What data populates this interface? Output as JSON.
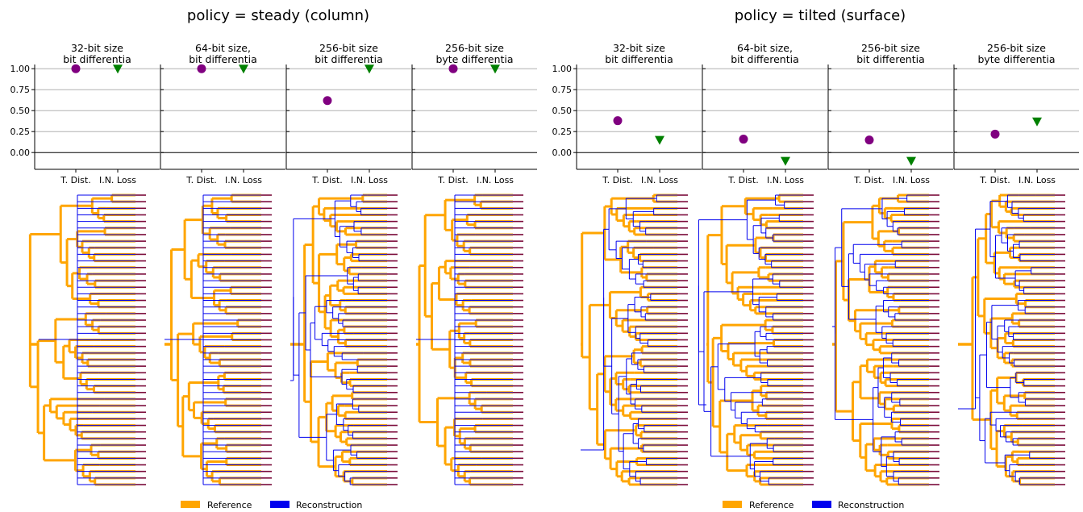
{
  "legend": {
    "reference_label": "Reference",
    "reconstruction_label": "Reconstruction"
  },
  "colors": {
    "reference": "#ffa500",
    "reconstruction": "#0000ee",
    "leaf": "#7a0a3a",
    "triplet_distance_marker": "#800080",
    "inner_node_loss_marker": "#008000",
    "grid": "#b0b0b0"
  },
  "chart_data": [
    {
      "type": "scatter",
      "title": "policy = steady (column)",
      "ylim": [
        -0.2,
        1.05
      ],
      "yticks": [
        "1.00",
        "0.75",
        "0.50",
        "0.25",
        "0.00"
      ],
      "grid": true,
      "panels": [
        {
          "title": [
            "32-bit size",
            "bit differentia"
          ],
          "categories": [
            "T. Dist.",
            "I.N. Loss"
          ],
          "values": [
            1.0,
            1.0
          ],
          "seed": 11
        },
        {
          "title": [
            "64-bit size,",
            "bit differentia"
          ],
          "categories": [
            "T. Dist.",
            "I.N. Loss"
          ],
          "values": [
            1.0,
            1.0
          ],
          "seed": 23
        },
        {
          "title": [
            "256-bit size",
            "bit differentia"
          ],
          "categories": [
            "T. Dist.",
            "I.N. Loss"
          ],
          "values": [
            0.62,
            1.0
          ],
          "seed": 37
        },
        {
          "title": [
            "256-bit size",
            "byte differentia"
          ],
          "categories": [
            "T. Dist.",
            "I.N. Loss"
          ],
          "values": [
            1.0,
            1.0
          ],
          "seed": 41
        }
      ]
    },
    {
      "type": "scatter",
      "title": "policy = tilted (surface)",
      "ylim": [
        -0.2,
        1.05
      ],
      "yticks": [
        "1.00",
        "0.75",
        "0.50",
        "0.25",
        "0.00"
      ],
      "grid": true,
      "panels": [
        {
          "title": [
            "32-bit size",
            "bit differentia"
          ],
          "categories": [
            "T. Dist.",
            "I.N. Loss"
          ],
          "values": [
            0.38,
            0.15
          ],
          "seed": 53
        },
        {
          "title": [
            "64-bit size,",
            "bit differentia"
          ],
          "categories": [
            "T. Dist.",
            "I.N. Loss"
          ],
          "values": [
            0.16,
            -0.1
          ],
          "seed": 67
        },
        {
          "title": [
            "256-bit size",
            "bit differentia"
          ],
          "categories": [
            "T. Dist.",
            "I.N. Loss"
          ],
          "values": [
            0.15,
            -0.1
          ],
          "seed": 71
        },
        {
          "title": [
            "256-bit size",
            "byte differentia"
          ],
          "categories": [
            "T. Dist.",
            "I.N. Loss"
          ],
          "values": [
            0.22,
            0.37
          ],
          "seed": 83
        }
      ]
    }
  ]
}
